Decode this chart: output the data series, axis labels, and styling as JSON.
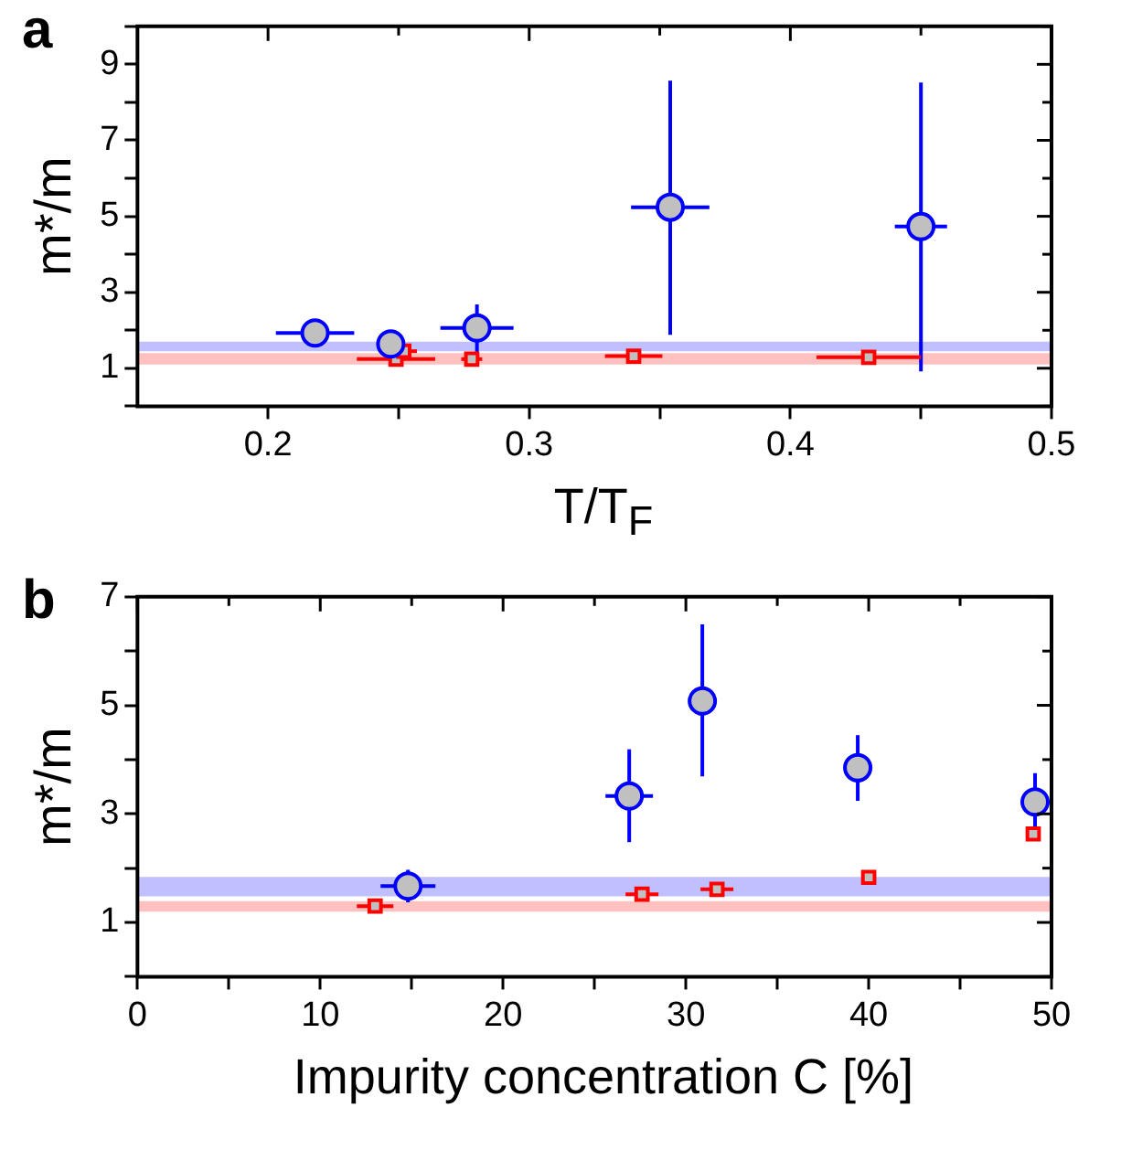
{
  "chart_data": [
    {
      "type": "scatter",
      "xlabel": "T/T$_{F}$",
      "ylabel": "m*/m",
      "annotations": [
        "a"
      ],
      "xlim": [
        0.15,
        0.5
      ],
      "xticks": [
        0.2,
        {
          "value": 0.25,
          "label": null
        },
        0.3,
        {
          "value": 0.35,
          "label": null
        },
        0.4,
        {
          "value": 0.45,
          "label": null
        },
        0.5
      ],
      "ylim": [
        0,
        10
      ],
      "yticks": [
        {
          "value": 0,
          "label": null
        },
        1,
        {
          "value": 2,
          "label": null
        },
        3,
        {
          "value": 4,
          "label": null
        },
        5,
        {
          "value": 6,
          "label": null
        },
        7,
        {
          "value": 8,
          "label": null
        },
        9,
        {
          "value": 10,
          "label": null
        }
      ],
      "grid": false,
      "legend": false,
      "bands": [
        {
          "axis": "y",
          "from": 1.45,
          "to": 1.7,
          "color": "#c0c0ff"
        },
        {
          "axis": "y",
          "from": 1.1,
          "to": 1.4,
          "color": "#ffc0c0"
        }
      ],
      "series": [
        {
          "color": "#0000ff",
          "marker": "circle",
          "x": [
            0.218,
            0.247,
            0.28,
            0.354,
            0.45
          ],
          "values": [
            1.93,
            1.64,
            2.06,
            5.24,
            4.73
          ],
          "errors": [
            null,
            [
              1.4,
              1.9
            ],
            [
              1.4,
              2.68
            ],
            [
              1.88,
              8.57
            ],
            [
              0.92,
              8.52
            ]
          ],
          "xerrors": [
            0.015,
            0.004,
            0.014,
            0.015,
            0.01
          ]
        },
        {
          "color": "#ff0000",
          "marker": "square",
          "x": [
            0.249,
            0.252,
            0.278,
            0.34,
            0.43
          ],
          "values": [
            1.24,
            1.45,
            1.24,
            1.32,
            1.29
          ],
          "xerrors": [
            0.015,
            0.005,
            0.004,
            0.011,
            0.02
          ]
        }
      ]
    },
    {
      "type": "scatter",
      "xlabel": "Impurity concentration C [%]",
      "ylabel": "m*/m",
      "annotations": [
        "b"
      ],
      "xlim": [
        0,
        50
      ],
      "xticks": [
        0,
        {
          "value": 5,
          "label": null
        },
        10,
        {
          "value": 15,
          "label": null
        },
        20,
        {
          "value": 25,
          "label": null
        },
        30,
        {
          "value": 35,
          "label": null
        },
        40,
        {
          "value": 45,
          "label": null
        },
        50
      ],
      "ylim": [
        0,
        7
      ],
      "yticks": [
        {
          "value": 0,
          "label": null
        },
        1,
        {
          "value": 2,
          "label": null
        },
        3,
        {
          "value": 4,
          "label": null
        },
        5,
        {
          "value": 6,
          "label": null
        },
        7
      ],
      "grid": false,
      "legend": false,
      "bands": [
        {
          "axis": "y",
          "from": 1.48,
          "to": 1.84,
          "color": "#c0c0ff"
        },
        {
          "axis": "y",
          "from": 1.2,
          "to": 1.39,
          "color": "#ffc0c0"
        }
      ],
      "series": [
        {
          "color": "#0000ff",
          "marker": "circle",
          "x": [
            14.8,
            26.9,
            30.9,
            39.4,
            49.1
          ],
          "values": [
            1.67,
            3.33,
            5.08,
            3.85,
            3.22
          ],
          "errors": [
            [
              1.37,
              1.97
            ],
            [
              2.48,
              4.19
            ],
            [
              3.69,
              6.49
            ],
            [
              3.24,
              4.45
            ],
            [
              2.7,
              3.75
            ]
          ],
          "xerrors": [
            1.5,
            1.3,
            0.6,
            null,
            null
          ]
        },
        {
          "color": "#ff0000",
          "marker": "square",
          "x": [
            13.0,
            27.6,
            31.7,
            40.0,
            49.0
          ],
          "values": [
            1.3,
            1.52,
            1.61,
            1.83,
            2.63
          ],
          "xerrors": [
            1.0,
            0.9,
            0.9,
            null,
            null
          ]
        }
      ]
    }
  ]
}
